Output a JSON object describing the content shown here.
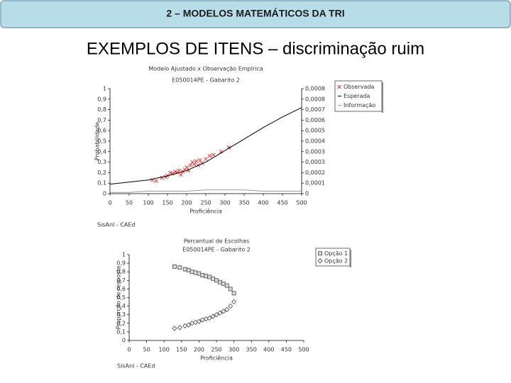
{
  "header": {
    "title": "2 – MODELOS MATEMÁTICOS DA TRI"
  },
  "title": "EXEMPLOS DE ITENS – discriminação ruim",
  "chart_data": [
    {
      "type": "scatter",
      "title": "Modelo Ajustado x Observação Empírica",
      "subtitle": "E050014PE - Gabarito 2",
      "x_label": "Proficiência",
      "y_label": "Probabilidade",
      "note": "SisAnI - CAEd",
      "xlim": [
        0,
        500
      ],
      "xticks": [
        0,
        50,
        100,
        150,
        200,
        250,
        300,
        350,
        400,
        450,
        500
      ],
      "ylim": [
        0,
        1
      ],
      "yticks": [
        0,
        {
          "value": 0.1,
          "label": "0,1"
        },
        {
          "value": 0.2,
          "label": "0,2"
        },
        {
          "value": 0.3,
          "label": "0,3"
        },
        {
          "value": 0.4,
          "label": "0,4"
        },
        {
          "value": 0.5,
          "label": "0,5"
        },
        {
          "value": 0.6,
          "label": "0,6"
        },
        {
          "value": 0.7,
          "label": "0,7"
        },
        {
          "value": 0.8,
          "label": "0,8"
        },
        {
          "value": 0.9,
          "label": "0,9"
        },
        1
      ],
      "y2lim": [
        0,
        0.00084
      ],
      "y2ticks": [
        0,
        {
          "value": 8.4e-05,
          "label": "0,0001"
        },
        {
          "value": 0.000168,
          "label": "0,0002"
        },
        {
          "value": 0.000252,
          "label": "0,0003"
        },
        {
          "value": 0.000336,
          "label": "0,0003"
        },
        {
          "value": 0.00042,
          "label": "0,0004"
        },
        {
          "value": 0.000504,
          "label": "0,0005"
        },
        {
          "value": 0.000588,
          "label": "0,0006"
        },
        {
          "value": 0.000672,
          "label": "0,0007"
        },
        {
          "value": 0.000756,
          "label": "0,0008"
        },
        {
          "value": 0.00084,
          "label": "0,0008"
        }
      ],
      "series": [
        {
          "name": "Observada",
          "color": "#e03030",
          "marker": "x",
          "x": [
            110,
            120,
            135,
            145,
            150,
            158,
            163,
            170,
            175,
            180,
            185,
            190,
            195,
            200,
            205,
            210,
            215,
            220,
            225,
            230,
            235,
            240,
            250,
            260,
            270,
            290,
            310
          ],
          "values": [
            0.13,
            0.12,
            0.15,
            0.16,
            0.17,
            0.2,
            0.19,
            0.21,
            0.2,
            0.22,
            0.18,
            0.21,
            0.23,
            0.25,
            0.22,
            0.27,
            0.3,
            0.28,
            0.31,
            0.27,
            0.32,
            0.29,
            0.33,
            0.36,
            0.37,
            0.4,
            0.44
          ]
        },
        {
          "name": "Esperada",
          "color": "#000000",
          "marker": "line",
          "x": [
            0,
            50,
            100,
            150,
            200,
            250,
            300,
            350,
            400,
            450,
            500
          ],
          "values": [
            0.09,
            0.11,
            0.13,
            0.17,
            0.22,
            0.3,
            0.41,
            0.52,
            0.63,
            0.73,
            0.82
          ]
        },
        {
          "name": "Informação",
          "color": "#999999",
          "marker": "line",
          "axis": "y2",
          "x": [
            0,
            50,
            100,
            150,
            200,
            250,
            300,
            350,
            400,
            450,
            500
          ],
          "values": [
            1e-05,
            1e-05,
            2e-05,
            2e-05,
            2e-05,
            3e-05,
            3e-05,
            3e-05,
            2e-05,
            2e-05,
            2e-05
          ]
        }
      ]
    },
    {
      "type": "scatter",
      "title": "Percentual de Escolhas",
      "subtitle": "E050014PE - Gabarito 2",
      "x_label": "Proficiência",
      "y_label": "Proporção de resposta",
      "note": "SisAnI - CAEd",
      "xlim": [
        0,
        500
      ],
      "xticks": [
        0,
        50,
        100,
        150,
        200,
        250,
        300,
        350,
        400,
        450,
        500
      ],
      "ylim": [
        0,
        1
      ],
      "yticks": [
        0,
        {
          "value": 0.1,
          "label": "0,1"
        },
        {
          "value": 0.2,
          "label": "0,2"
        },
        {
          "value": 0.3,
          "label": "0,3"
        },
        {
          "value": 0.4,
          "label": "0,4"
        },
        {
          "value": 0.5,
          "label": "0,5"
        },
        {
          "value": 0.6,
          "label": "0,6"
        },
        {
          "value": 0.7,
          "label": "0,7"
        },
        {
          "value": 0.8,
          "label": "0,8"
        },
        {
          "value": 0.9,
          "label": "0,9"
        },
        1
      ],
      "series": [
        {
          "name": "Opção 1",
          "color": "#555555",
          "marker": "square",
          "x": [
            130,
            145,
            160,
            170,
            180,
            190,
            200,
            210,
            220,
            230,
            240,
            250,
            260,
            270,
            280,
            290,
            300
          ],
          "values": [
            0.86,
            0.85,
            0.83,
            0.82,
            0.8,
            0.79,
            0.78,
            0.76,
            0.75,
            0.74,
            0.72,
            0.7,
            0.68,
            0.66,
            0.64,
            0.6,
            0.55
          ]
        },
        {
          "name": "Opção 2",
          "color": "#555555",
          "marker": "diamond",
          "x": [
            130,
            145,
            160,
            170,
            180,
            190,
            200,
            210,
            220,
            230,
            240,
            250,
            260,
            270,
            280,
            290,
            300
          ],
          "values": [
            0.14,
            0.15,
            0.17,
            0.18,
            0.2,
            0.21,
            0.22,
            0.24,
            0.25,
            0.26,
            0.28,
            0.3,
            0.32,
            0.34,
            0.36,
            0.4,
            0.45
          ]
        }
      ]
    }
  ]
}
